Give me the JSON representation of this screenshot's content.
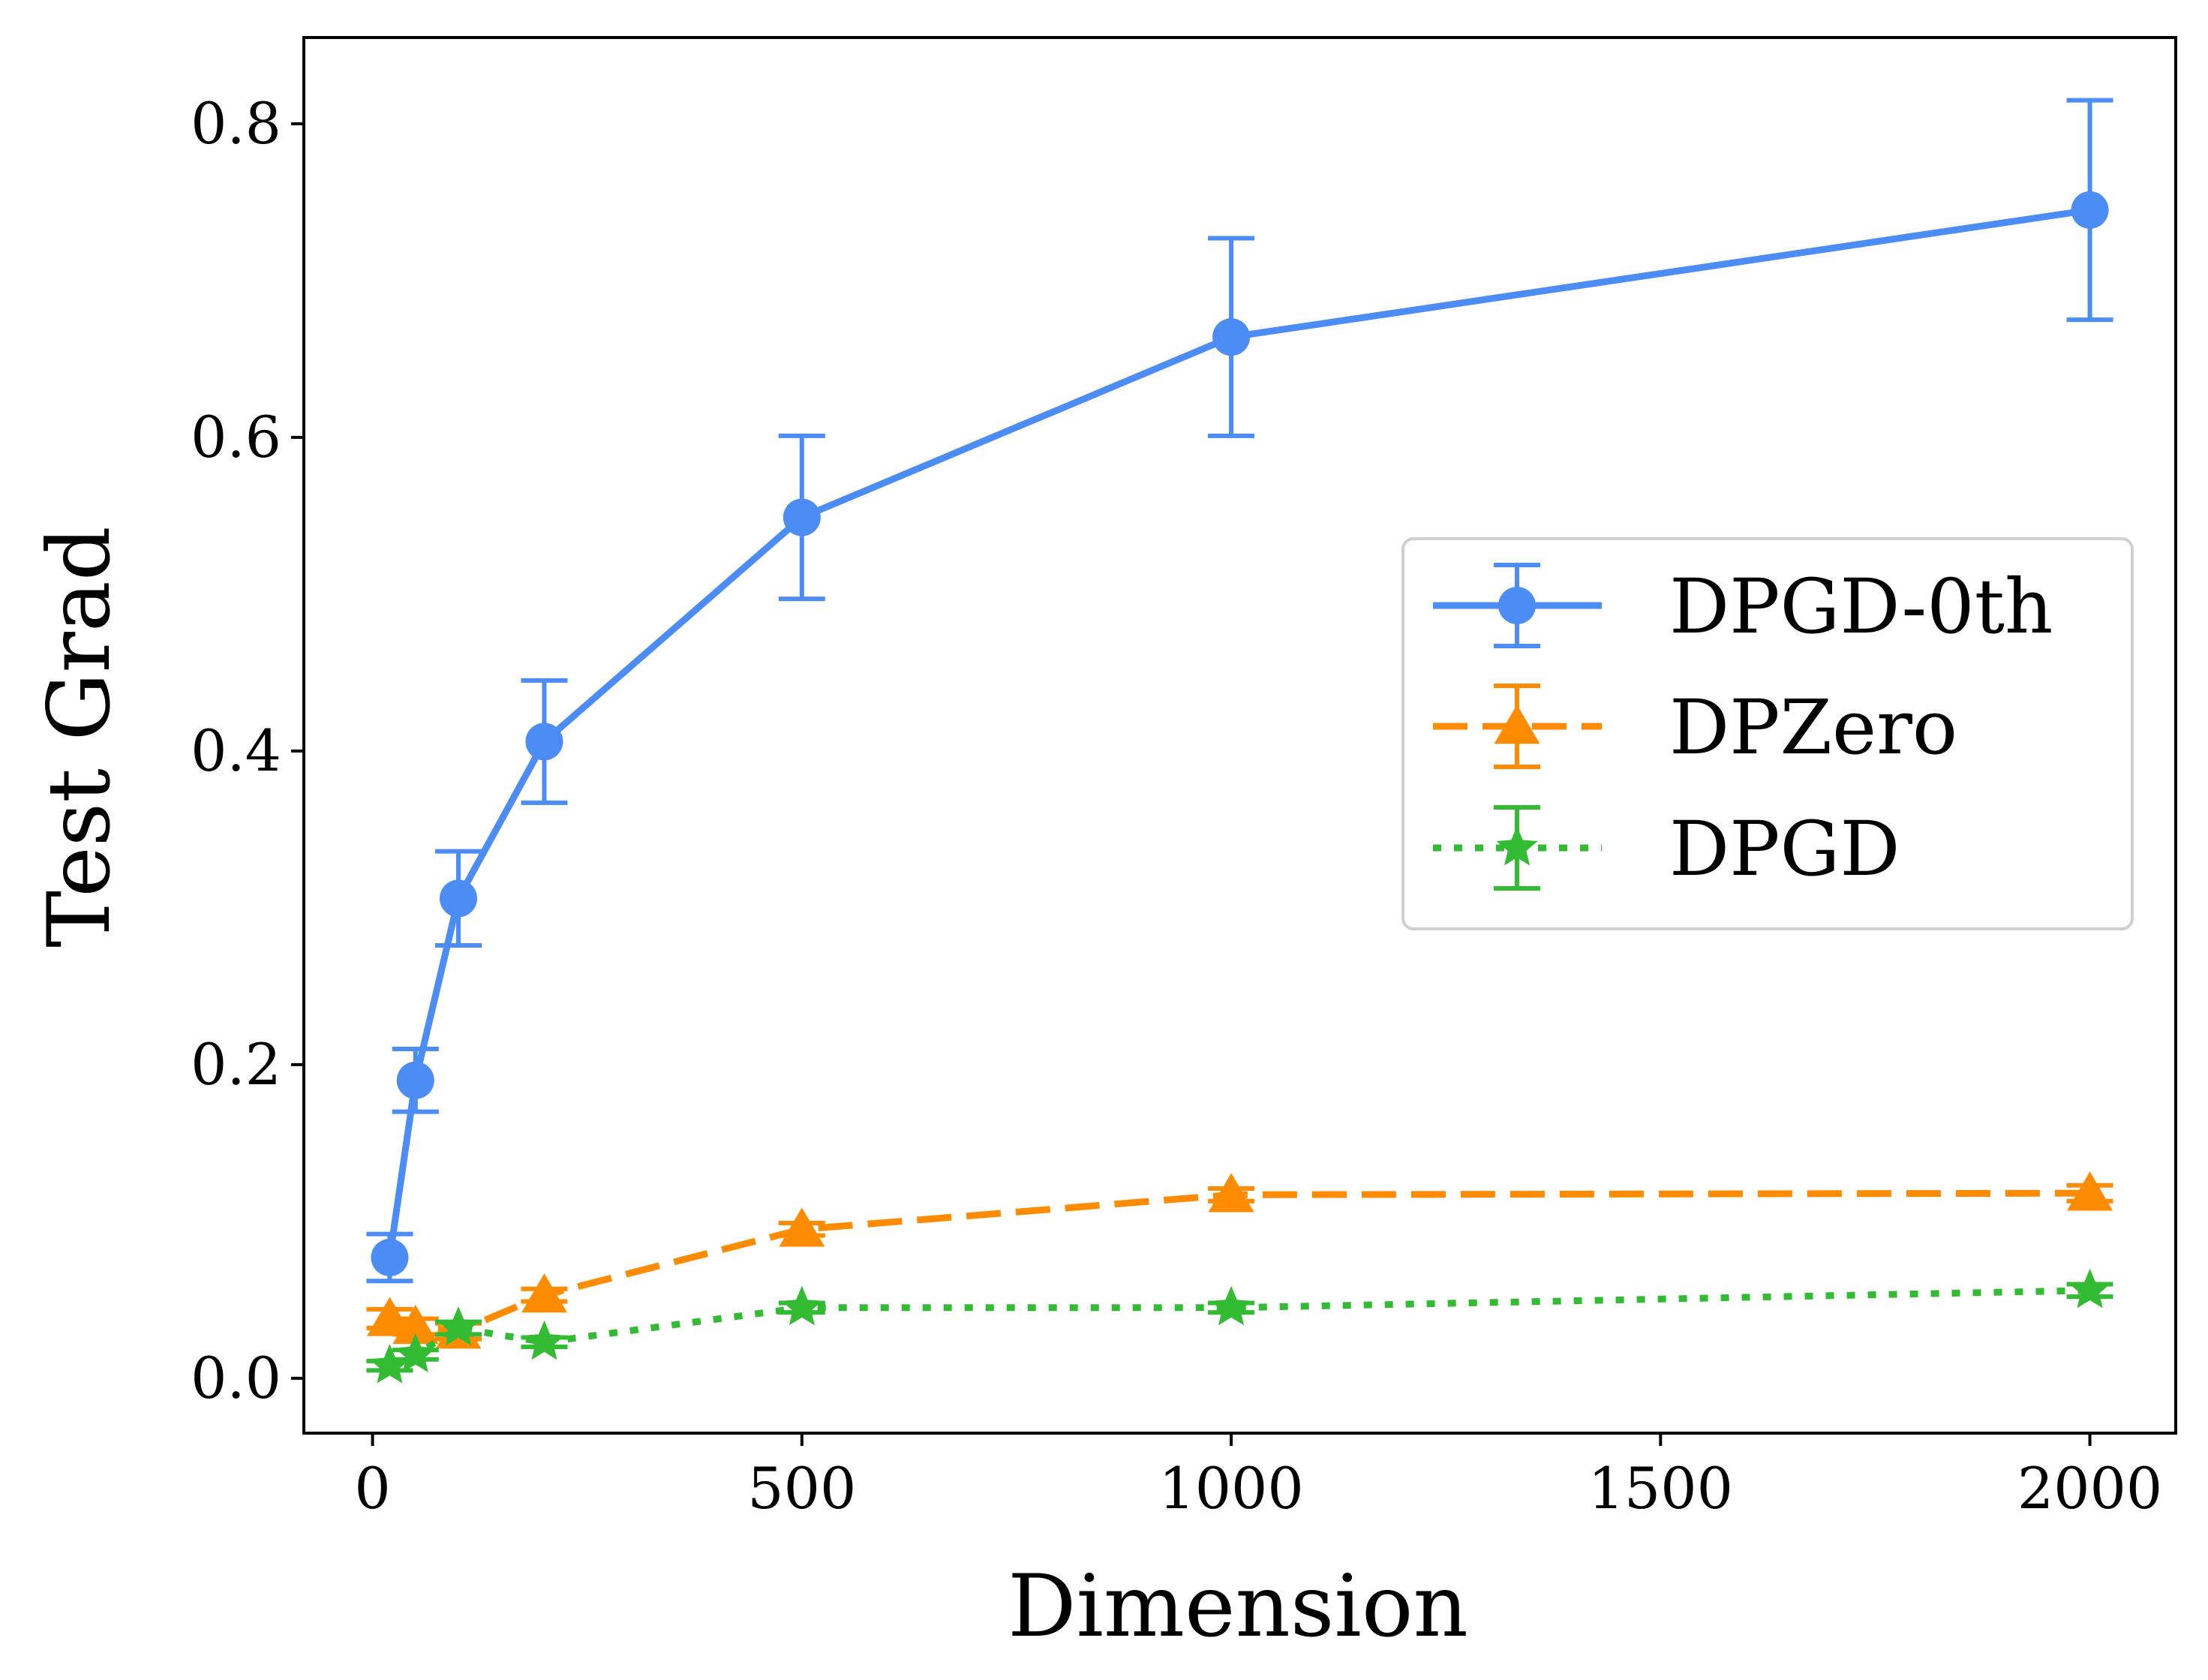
{
  "chart_data": {
    "type": "line",
    "title": "",
    "xlabel": "Dimension",
    "ylabel": "Test Grad",
    "xlim": [
      -80,
      2100
    ],
    "ylim": [
      -0.035,
      0.855
    ],
    "xticks": [
      0,
      500,
      1000,
      1500,
      2000
    ],
    "xtick_labels": [
      "0",
      "500",
      "1000",
      "1500",
      "2000"
    ],
    "yticks": [
      0.0,
      0.2,
      0.4,
      0.6,
      0.8
    ],
    "ytick_labels": [
      "0.0",
      "0.2",
      "0.4",
      "0.6",
      "0.8"
    ],
    "grid": false,
    "legend_position": "center-right",
    "x": [
      20,
      50,
      100,
      200,
      500,
      1000,
      2000
    ],
    "series": [
      {
        "name": "DPGD-0th",
        "color": "#4c8cf5",
        "linestyle": "solid",
        "marker": "circle",
        "values": [
          0.077,
          0.19,
          0.306,
          0.406,
          0.549,
          0.664,
          0.745
        ],
        "errors": [
          0.015,
          0.02,
          0.03,
          0.039,
          0.052,
          0.063,
          0.07
        ]
      },
      {
        "name": "DPZero",
        "color": "#ff8c00",
        "linestyle": "dashed",
        "marker": "triangle",
        "values": [
          0.038,
          0.033,
          0.03,
          0.053,
          0.095,
          0.117,
          0.118
        ],
        "errors": [
          0.006,
          0.005,
          0.005,
          0.004,
          0.004,
          0.004,
          0.005
        ]
      },
      {
        "name": "DPGD",
        "color": "#33bb33",
        "linestyle": "dotted",
        "marker": "star",
        "values": [
          0.008,
          0.015,
          0.032,
          0.023,
          0.045,
          0.045,
          0.056
        ],
        "errors": [
          0.003,
          0.003,
          0.004,
          0.003,
          0.003,
          0.003,
          0.004
        ]
      }
    ]
  }
}
